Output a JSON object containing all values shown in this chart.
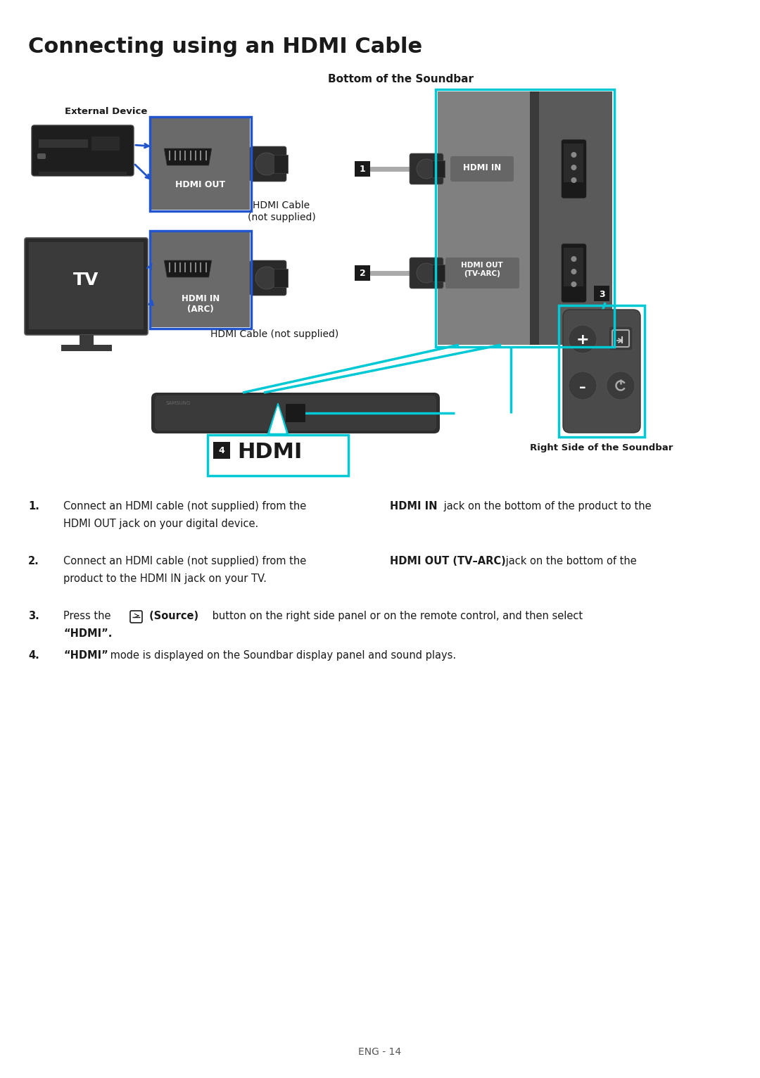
{
  "title": "Connecting using an HDMI Cable",
  "bg_color": "#ffffff",
  "text_color": "#1a1a1a",
  "blue_color": "#2255cc",
  "cyan_color": "#00c8d4",
  "footer": "ENG - 14",
  "body": [
    {
      "num": "1.",
      "parts": [
        {
          "text": "Connect an HDMI cable (not supplied) from the ",
          "bold": false
        },
        {
          "text": "HDMI IN",
          "bold": true
        },
        {
          "text": " jack on the bottom of the product to the",
          "bold": false
        }
      ],
      "line2": "HDMI OUT jack on your digital device."
    },
    {
      "num": "2.",
      "parts": [
        {
          "text": "Connect an HDMI cable (not supplied) from the ",
          "bold": false
        },
        {
          "text": "HDMI OUT (TV–ARC)",
          "bold": true
        },
        {
          "text": " jack on the bottom of the",
          "bold": false
        }
      ],
      "line2": "product to the HDMI IN jack on your TV."
    },
    {
      "num": "3.",
      "parts": [
        {
          "text": "Press the ",
          "bold": false
        },
        {
          "text": "↵",
          "bold": false,
          "icon": true
        },
        {
          "text": " (Source)",
          "bold": true
        },
        {
          "text": " button on the right side panel or on the remote control, and then select",
          "bold": false
        }
      ],
      "line2": "“HDMI”."
    },
    {
      "num": "4.",
      "parts": [
        {
          "text": "“HDMI”",
          "bold": true
        },
        {
          "text": " mode is displayed on the Soundbar display panel and sound plays.",
          "bold": false
        }
      ],
      "line2": null
    }
  ]
}
